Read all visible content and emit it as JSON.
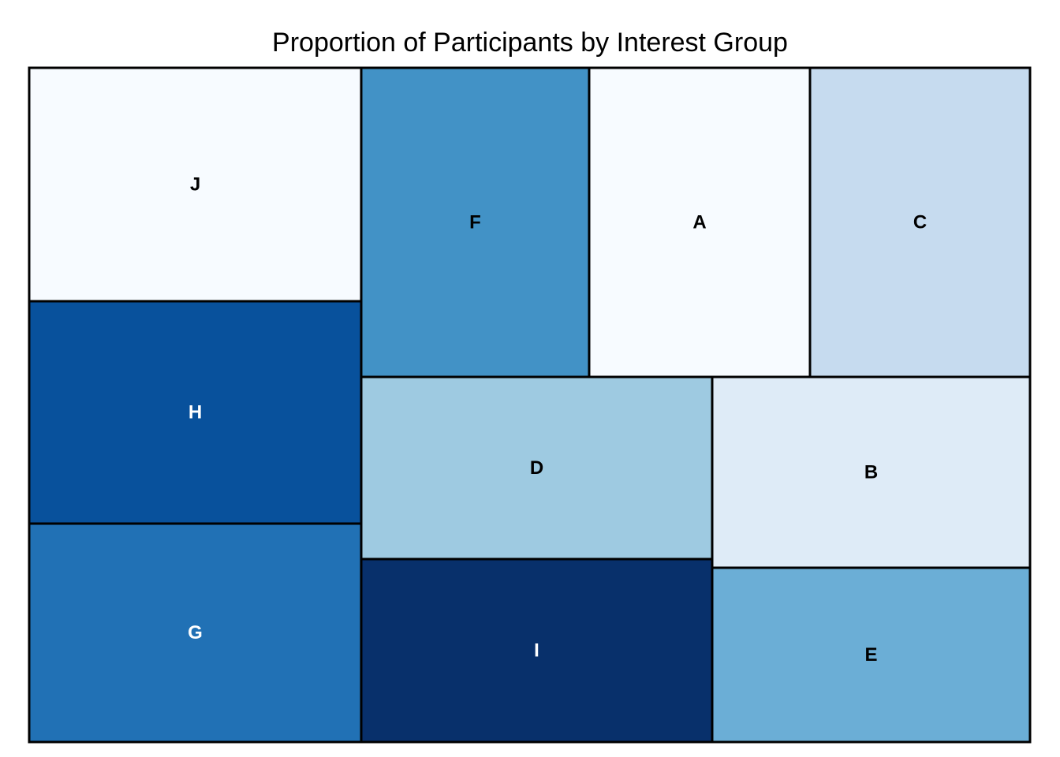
{
  "chart_data": {
    "type": "treemap",
    "title": "Proportion of Participants by Interest Group",
    "tiles": [
      {
        "label": "J",
        "value": 12.4,
        "color": "#f7fbff",
        "text_color": "#000000"
      },
      {
        "label": "H",
        "value": 11.9,
        "color": "#08519c",
        "text_color": "#ffffff"
      },
      {
        "label": "G",
        "value": 11.8,
        "color": "#2171b5",
        "text_color": "#ffffff"
      },
      {
        "label": "F",
        "value": 11.2,
        "color": "#4292c6",
        "text_color": "#000000"
      },
      {
        "label": "A",
        "value": 10.9,
        "color": "#f7fbff",
        "text_color": "#000000"
      },
      {
        "label": "C",
        "value": 10.8,
        "color": "#c6dbef",
        "text_color": "#000000"
      },
      {
        "label": "D",
        "value": 10.1,
        "color": "#9ecae1",
        "text_color": "#000000"
      },
      {
        "label": "B",
        "value": 9.6,
        "color": "#deebf7",
        "text_color": "#000000"
      },
      {
        "label": "I",
        "value": 9.9,
        "color": "#08306b",
        "text_color": "#ffffff"
      },
      {
        "label": "E",
        "value": 8.6,
        "color": "#6baed6",
        "text_color": "#000000"
      }
    ]
  }
}
